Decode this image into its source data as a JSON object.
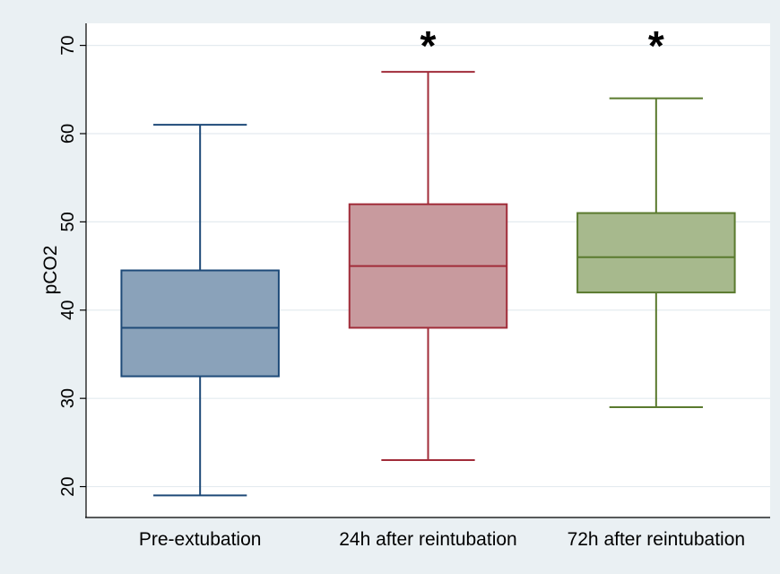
{
  "chart_data": {
    "type": "box",
    "title": "",
    "xlabel": "",
    "ylabel": "pCO2",
    "ylim": [
      16.5,
      72.5
    ],
    "yticks": [
      20,
      30,
      40,
      50,
      60,
      70
    ],
    "ytick_labels": [
      "20",
      "30",
      "40",
      "50",
      "60",
      "70"
    ],
    "grid": true,
    "categories": [
      "Pre-extubation",
      "24h after reintubation",
      "72h after reintubation"
    ],
    "boxes": [
      {
        "category": "Pre-extubation",
        "whisker_low": 19,
        "q1": 32.5,
        "median": 38,
        "q3": 44.5,
        "whisker_high": 61,
        "fill": "#8aa2ba",
        "stroke": "#1e4a78",
        "annotation": ""
      },
      {
        "category": "24h after reintubation",
        "whisker_low": 23,
        "q1": 38,
        "median": 45,
        "q3": 52,
        "whisker_high": 67,
        "fill": "#c89a9e",
        "stroke": "#a12c39",
        "annotation": "*"
      },
      {
        "category": "72h after reintubation",
        "whisker_low": 29,
        "q1": 42,
        "median": 46,
        "q3": 51,
        "whisker_high": 64,
        "fill": "#a7b98d",
        "stroke": "#5a7a2e",
        "annotation": "*"
      }
    ],
    "colors": {
      "background": "#eaf0f3",
      "plot_background": "#ffffff",
      "grid": "#e4ebef",
      "axis": "#000000"
    }
  }
}
